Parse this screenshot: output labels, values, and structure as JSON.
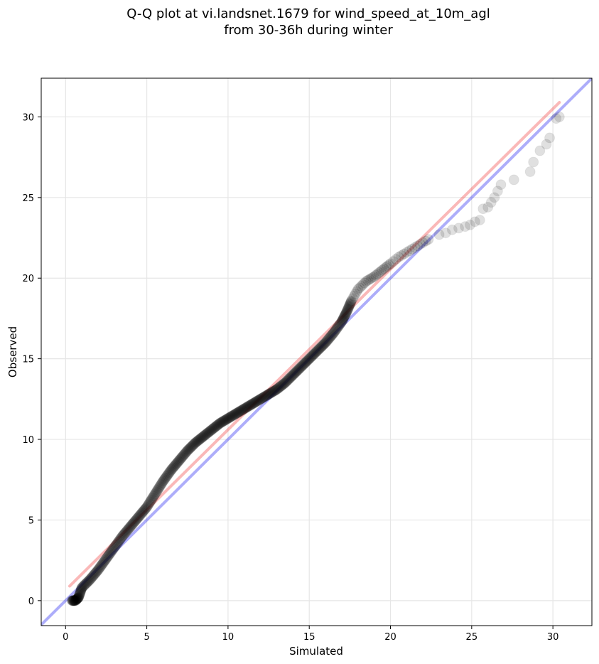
{
  "chart_data": {
    "type": "scatter",
    "title": [
      "Q-Q plot at vi.landsnet.1679 for wind_speed_at_10m_agl",
      "from 30-36h during winter"
    ],
    "xlabel": "Simulated",
    "ylabel": "Observed",
    "xlim": [
      -1.5,
      32.4
    ],
    "ylim": [
      -1.55,
      32.4
    ],
    "xticks": [
      0,
      5,
      10,
      15,
      20,
      25,
      30
    ],
    "yticks": [
      0,
      5,
      10,
      15,
      20,
      25,
      30
    ],
    "grid": true,
    "reference_lines": [
      {
        "name": "1:1 line",
        "color": "#0000ee",
        "x": [
          -1.5,
          32.4
        ],
        "y": [
          -1.5,
          32.4
        ]
      },
      {
        "name": "fit line",
        "color": "#ee2222",
        "x": [
          0.25,
          30.4
        ],
        "y": [
          0.9,
          30.9
        ]
      }
    ],
    "quantile_curve": {
      "x": [
        0.4,
        0.6,
        0.8,
        1.0,
        1.5,
        2.0,
        2.5,
        3.0,
        3.5,
        4.0,
        4.5,
        5.0,
        5.5,
        6.0,
        6.5,
        7.0,
        7.5,
        8.0,
        8.5,
        9.0,
        9.5,
        10.0,
        10.5,
        11.0,
        11.5,
        12.0,
        12.5,
        13.0,
        13.5,
        14.0,
        14.5,
        15.0,
        15.5,
        16.0,
        16.5,
        17.0,
        17.3,
        17.6,
        18.0,
        18.5,
        19.0,
        19.5,
        20.0,
        20.5,
        21.0,
        21.5,
        22.0,
        22.5
      ],
      "y": [
        0.0,
        0.0,
        0.2,
        0.8,
        1.3,
        1.9,
        2.6,
        3.3,
        4.0,
        4.6,
        5.2,
        5.8,
        6.6,
        7.4,
        8.1,
        8.7,
        9.3,
        9.8,
        10.2,
        10.6,
        11.0,
        11.3,
        11.6,
        11.9,
        12.2,
        12.5,
        12.8,
        13.1,
        13.5,
        14.0,
        14.5,
        15.0,
        15.5,
        16.0,
        16.6,
        17.3,
        17.9,
        18.6,
        19.3,
        19.8,
        20.1,
        20.5,
        20.9,
        21.3,
        21.6,
        21.9,
        22.2,
        22.5
      ]
    },
    "tail_points": {
      "x": [
        23.0,
        23.4,
        23.8,
        24.2,
        24.6,
        24.9,
        25.2,
        25.5,
        25.7,
        26.0,
        26.2,
        26.4,
        26.6,
        26.8,
        27.6,
        28.6,
        28.8,
        29.2,
        29.6,
        29.8,
        30.2,
        30.4
      ],
      "y": [
        22.7,
        22.8,
        23.0,
        23.1,
        23.2,
        23.3,
        23.5,
        23.6,
        24.3,
        24.4,
        24.7,
        25.0,
        25.4,
        25.8,
        26.1,
        26.6,
        27.2,
        27.9,
        28.3,
        28.7,
        29.9,
        30.0
      ]
    }
  }
}
